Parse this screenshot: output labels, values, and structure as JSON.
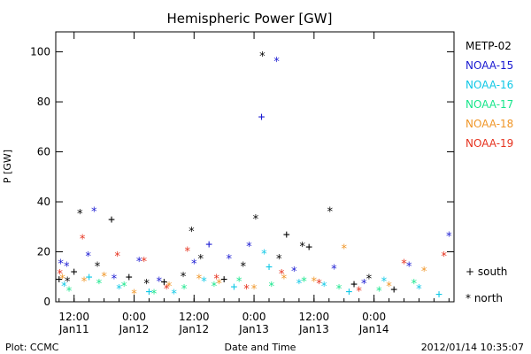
{
  "chart_data": {
    "type": "scatter",
    "title": "Hemispheric Power [GW]",
    "ylabel": "P [GW]",
    "xlabel": "Date and Time",
    "ylim": [
      0,
      108
    ],
    "yticks": [
      0,
      20,
      40,
      60,
      80,
      100
    ],
    "xlim": [
      "2012-01-11T08:20",
      "2012-01-14T16:00"
    ],
    "xticks": [
      {
        "time": "2012-01-11T12:00",
        "line1": "12:00",
        "line2": "Jan11"
      },
      {
        "time": "2012-01-12T00:00",
        "line1": "0:00",
        "line2": "Jan12"
      },
      {
        "time": "2012-01-12T12:00",
        "line1": "12:00",
        "line2": "Jan12"
      },
      {
        "time": "2012-01-13T00:00",
        "line1": "0:00",
        "line2": "Jan13"
      },
      {
        "time": "2012-01-13T12:00",
        "line1": "12:00",
        "line2": "Jan13"
      },
      {
        "time": "2012-01-14T00:00",
        "line1": "0:00",
        "line2": "Jan14"
      }
    ],
    "grid": false,
    "legend_position": "right",
    "marker_legend": [
      {
        "symbol": "+",
        "label": "south"
      },
      {
        "symbol": "*",
        "label": "north"
      }
    ],
    "series": [
      {
        "name": "METP-02",
        "color": "#000000",
        "points": [
          {
            "t": "2012-01-11T09:00",
            "v": 9,
            "m": "+"
          },
          {
            "t": "2012-01-11T10:40",
            "v": 8,
            "m": "*"
          },
          {
            "t": "2012-01-11T12:00",
            "v": 12,
            "m": "+"
          },
          {
            "t": "2012-01-11T13:10",
            "v": 35,
            "m": "*"
          },
          {
            "t": "2012-01-11T16:40",
            "v": 14,
            "m": "*"
          },
          {
            "t": "2012-01-11T19:30",
            "v": 33,
            "m": "+"
          },
          {
            "t": "2012-01-11T23:00",
            "v": 10,
            "m": "+"
          },
          {
            "t": "2012-01-12T02:30",
            "v": 7,
            "m": "*"
          },
          {
            "t": "2012-01-12T06:00",
            "v": 8,
            "m": "+"
          },
          {
            "t": "2012-01-12T09:50",
            "v": 10,
            "m": "*"
          },
          {
            "t": "2012-01-12T11:30",
            "v": 28,
            "m": "*"
          },
          {
            "t": "2012-01-12T13:20",
            "v": 17,
            "m": "*"
          },
          {
            "t": "2012-01-12T18:00",
            "v": 9,
            "m": "+"
          },
          {
            "t": "2012-01-12T21:50",
            "v": 14,
            "m": "*"
          },
          {
            "t": "2012-01-13T00:20",
            "v": 33,
            "m": "*"
          },
          {
            "t": "2012-01-13T01:40",
            "v": 98,
            "m": "*"
          },
          {
            "t": "2012-01-13T05:00",
            "v": 17,
            "m": "*"
          },
          {
            "t": "2012-01-13T06:30",
            "v": 27,
            "m": "+"
          },
          {
            "t": "2012-01-13T09:40",
            "v": 22,
            "m": "*"
          },
          {
            "t": "2012-01-13T11:00",
            "v": 22,
            "m": "+"
          },
          {
            "t": "2012-01-13T15:10",
            "v": 36,
            "m": "*"
          },
          {
            "t": "2012-01-13T20:00",
            "v": 7,
            "m": "+"
          },
          {
            "t": "2012-01-13T23:00",
            "v": 9,
            "m": "*"
          },
          {
            "t": "2012-01-14T04:00",
            "v": 5,
            "m": "+"
          }
        ]
      },
      {
        "name": "NOAA-15",
        "color": "#1a1ad2",
        "points": [
          {
            "t": "2012-01-11T09:20",
            "v": 15,
            "m": "*"
          },
          {
            "t": "2012-01-11T10:30",
            "v": 14,
            "m": "*"
          },
          {
            "t": "2012-01-11T14:50",
            "v": 18,
            "m": "*"
          },
          {
            "t": "2012-01-11T16:00",
            "v": 36,
            "m": "*"
          },
          {
            "t": "2012-01-11T20:00",
            "v": 9,
            "m": "*"
          },
          {
            "t": "2012-01-12T01:00",
            "v": 16,
            "m": "*"
          },
          {
            "t": "2012-01-12T05:00",
            "v": 8,
            "m": "*"
          },
          {
            "t": "2012-01-12T12:00",
            "v": 15,
            "m": "*"
          },
          {
            "t": "2012-01-12T15:00",
            "v": 23,
            "m": "+"
          },
          {
            "t": "2012-01-12T19:00",
            "v": 17,
            "m": "*"
          },
          {
            "t": "2012-01-12T23:00",
            "v": 22,
            "m": "*"
          },
          {
            "t": "2012-01-13T01:30",
            "v": 74,
            "m": "+"
          },
          {
            "t": "2012-01-13T04:30",
            "v": 96,
            "m": "*"
          },
          {
            "t": "2012-01-13T08:00",
            "v": 12,
            "m": "*"
          },
          {
            "t": "2012-01-13T16:00",
            "v": 13,
            "m": "*"
          },
          {
            "t": "2012-01-13T22:00",
            "v": 7,
            "m": "*"
          },
          {
            "t": "2012-01-14T07:00",
            "v": 14,
            "m": "*"
          },
          {
            "t": "2012-01-14T15:00",
            "v": 26,
            "m": "*"
          }
        ]
      },
      {
        "name": "NOAA-16",
        "color": "#0fc8e6",
        "points": [
          {
            "t": "2012-01-11T10:00",
            "v": 6,
            "m": "*"
          },
          {
            "t": "2012-01-11T15:00",
            "v": 10,
            "m": "+"
          },
          {
            "t": "2012-01-11T21:00",
            "v": 5,
            "m": "*"
          },
          {
            "t": "2012-01-12T03:00",
            "v": 4,
            "m": "+"
          },
          {
            "t": "2012-01-12T08:00",
            "v": 3,
            "m": "*"
          },
          {
            "t": "2012-01-12T14:00",
            "v": 8,
            "m": "*"
          },
          {
            "t": "2012-01-12T20:00",
            "v": 6,
            "m": "+"
          },
          {
            "t": "2012-01-13T02:00",
            "v": 19,
            "m": "*"
          },
          {
            "t": "2012-01-13T03:00",
            "v": 14,
            "m": "+"
          },
          {
            "t": "2012-01-13T09:00",
            "v": 7,
            "m": "*"
          },
          {
            "t": "2012-01-13T14:00",
            "v": 6,
            "m": "*"
          },
          {
            "t": "2012-01-13T19:00",
            "v": 4,
            "m": "+"
          },
          {
            "t": "2012-01-14T02:00",
            "v": 8,
            "m": "*"
          },
          {
            "t": "2012-01-14T09:00",
            "v": 5,
            "m": "*"
          },
          {
            "t": "2012-01-14T13:00",
            "v": 3,
            "m": "+"
          }
        ]
      },
      {
        "name": "NOAA-17",
        "color": "#18e68c",
        "points": [
          {
            "t": "2012-01-11T11:00",
            "v": 4,
            "m": "*"
          },
          {
            "t": "2012-01-11T17:00",
            "v": 7,
            "m": "*"
          },
          {
            "t": "2012-01-11T22:00",
            "v": 6,
            "m": "*"
          },
          {
            "t": "2012-01-12T04:00",
            "v": 3,
            "m": "*"
          },
          {
            "t": "2012-01-12T10:00",
            "v": 5,
            "m": "*"
          },
          {
            "t": "2012-01-12T16:00",
            "v": 6,
            "m": "*"
          },
          {
            "t": "2012-01-12T21:00",
            "v": 8,
            "m": "*"
          },
          {
            "t": "2012-01-13T03:30",
            "v": 6,
            "m": "*"
          },
          {
            "t": "2012-01-13T10:00",
            "v": 8,
            "m": "*"
          },
          {
            "t": "2012-01-13T17:00",
            "v": 5,
            "m": "*"
          },
          {
            "t": "2012-01-14T01:00",
            "v": 4,
            "m": "*"
          },
          {
            "t": "2012-01-14T08:00",
            "v": 7,
            "m": "*"
          }
        ]
      },
      {
        "name": "NOAA-18",
        "color": "#f09628",
        "points": [
          {
            "t": "2012-01-11T09:40",
            "v": 9,
            "m": "*"
          },
          {
            "t": "2012-01-11T14:00",
            "v": 8,
            "m": "*"
          },
          {
            "t": "2012-01-11T18:00",
            "v": 10,
            "m": "*"
          },
          {
            "t": "2012-01-12T00:00",
            "v": 3,
            "m": "*"
          },
          {
            "t": "2012-01-12T07:00",
            "v": 6,
            "m": "*"
          },
          {
            "t": "2012-01-12T13:00",
            "v": 9,
            "m": "*"
          },
          {
            "t": "2012-01-12T17:00",
            "v": 7,
            "m": "*"
          },
          {
            "t": "2012-01-13T00:00",
            "v": 5,
            "m": "*"
          },
          {
            "t": "2012-01-13T06:00",
            "v": 9,
            "m": "*"
          },
          {
            "t": "2012-01-13T12:00",
            "v": 8,
            "m": "*"
          },
          {
            "t": "2012-01-13T18:00",
            "v": 21,
            "m": "*"
          },
          {
            "t": "2012-01-14T03:00",
            "v": 6,
            "m": "*"
          },
          {
            "t": "2012-01-14T10:00",
            "v": 12,
            "m": "*"
          }
        ]
      },
      {
        "name": "NOAA-19",
        "color": "#e6321e",
        "points": [
          {
            "t": "2012-01-11T09:10",
            "v": 11,
            "m": "*"
          },
          {
            "t": "2012-01-11T13:40",
            "v": 25,
            "m": "*"
          },
          {
            "t": "2012-01-11T20:40",
            "v": 18,
            "m": "*"
          },
          {
            "t": "2012-01-12T02:00",
            "v": 16,
            "m": "*"
          },
          {
            "t": "2012-01-12T06:30",
            "v": 5,
            "m": "*"
          },
          {
            "t": "2012-01-12T10:40",
            "v": 20,
            "m": "*"
          },
          {
            "t": "2012-01-12T16:30",
            "v": 9,
            "m": "*"
          },
          {
            "t": "2012-01-12T22:30",
            "v": 5,
            "m": "*"
          },
          {
            "t": "2012-01-13T05:30",
            "v": 11,
            "m": "*"
          },
          {
            "t": "2012-01-13T13:00",
            "v": 7,
            "m": "*"
          },
          {
            "t": "2012-01-13T21:00",
            "v": 4,
            "m": "*"
          },
          {
            "t": "2012-01-14T06:00",
            "v": 15,
            "m": "*"
          },
          {
            "t": "2012-01-14T14:00",
            "v": 18,
            "m": "*"
          }
        ]
      }
    ]
  },
  "footer": {
    "source": "Plot: CCMC",
    "timestamp": "2012/01/14 10:35:07"
  }
}
